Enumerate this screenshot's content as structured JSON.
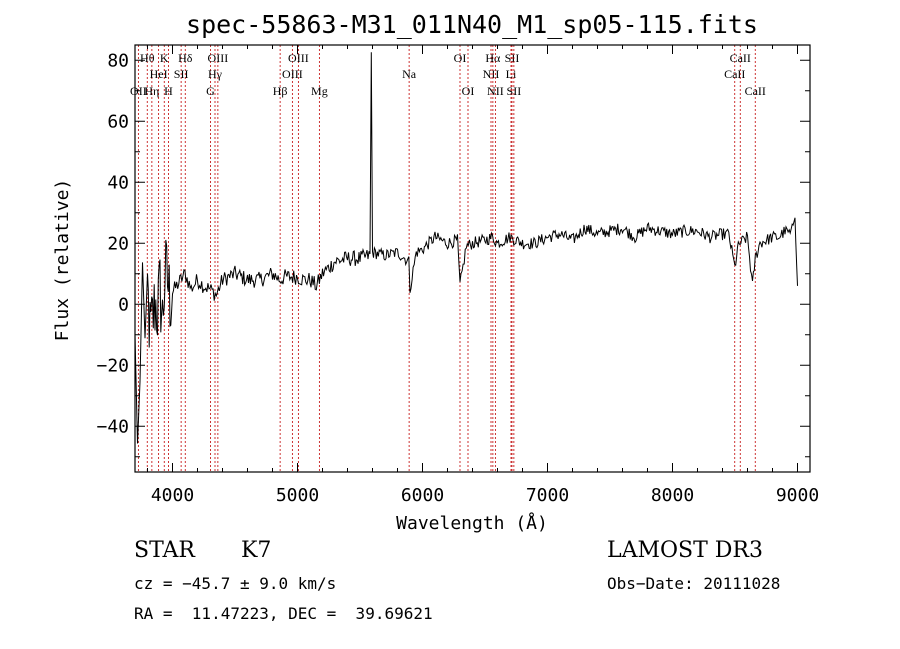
{
  "chart_data": {
    "type": "line",
    "title": "spec-55863-M31_011N40_M1_sp05-115.fits",
    "xlabel": "Wavelength (Å)",
    "ylabel": "Flux (relative)",
    "xlim": [
      3700,
      9100
    ],
    "ylim": [
      -55,
      85
    ],
    "x_ticks": [
      4000,
      5000,
      6000,
      7000,
      8000,
      9000
    ],
    "y_ticks": [
      -40,
      -20,
      0,
      20,
      40,
      60,
      80
    ],
    "series": [
      {
        "name": "spectrum",
        "x": [
          3700,
          3720,
          3740,
          3760,
          3780,
          3800,
          3820,
          3840,
          3860,
          3880,
          3900,
          3920,
          3940,
          3960,
          3980,
          4000,
          4050,
          4100,
          4150,
          4200,
          4250,
          4300,
          4350,
          4400,
          4450,
          4500,
          4600,
          4700,
          4800,
          4860,
          4900,
          5000,
          5050,
          5100,
          5150,
          5200,
          5300,
          5400,
          5500,
          5580,
          5590,
          5600,
          5700,
          5800,
          5890,
          5900,
          5950,
          6000,
          6100,
          6200,
          6280,
          6300,
          6350,
          6400,
          6500,
          6560,
          6600,
          6700,
          6800,
          6900,
          7000,
          7100,
          7200,
          7300,
          7400,
          7500,
          7600,
          7700,
          7800,
          7900,
          8000,
          8100,
          8200,
          8300,
          8400,
          8450,
          8498,
          8520,
          8540,
          8600,
          8640,
          8662,
          8700,
          8800,
          8850,
          8900,
          8950,
          8980,
          9000
        ],
        "y": [
          -10,
          -50,
          -20,
          10,
          -25,
          5,
          -10,
          -5,
          0,
          -2,
          5,
          -5,
          10,
          8,
          2,
          4,
          7,
          10,
          5,
          8,
          6,
          5,
          3,
          8,
          9,
          10,
          8,
          8,
          10,
          8,
          9,
          9,
          8,
          8,
          6,
          10,
          14,
          15,
          15,
          16,
          82,
          17,
          16,
          17,
          14,
          5,
          17,
          18,
          22,
          20,
          21,
          6,
          19,
          20,
          21,
          22,
          20,
          22,
          20,
          20,
          22,
          23,
          21,
          25,
          23,
          24,
          25,
          22,
          25,
          24,
          23,
          24,
          24,
          22,
          23,
          23,
          12,
          18,
          20,
          22,
          6,
          15,
          20,
          22,
          22,
          24,
          23,
          30,
          6
        ]
      }
    ],
    "spectral_lines": [
      {
        "label": "OII",
        "wavelength": 3727,
        "row": 3
      },
      {
        "label": "Hθ",
        "wavelength": 3798,
        "row": 1
      },
      {
        "label": "Hη",
        "wavelength": 3835,
        "row": 3
      },
      {
        "label": "HeI",
        "wavelength": 3889,
        "row": 2
      },
      {
        "label": "K",
        "wavelength": 3934,
        "row": 1
      },
      {
        "label": "H",
        "wavelength": 3968,
        "row": 3
      },
      {
        "label": "SII",
        "wavelength": 4069,
        "row": 2
      },
      {
        "label": "Hδ",
        "wavelength": 4102,
        "row": 1
      },
      {
        "label": "G",
        "wavelength": 4304,
        "row": 3
      },
      {
        "label": "Hγ",
        "wavelength": 4340,
        "row": 2
      },
      {
        "label": "OIII",
        "wavelength": 4363,
        "row": 1
      },
      {
        "label": "Hβ",
        "wavelength": 4861,
        "row": 3
      },
      {
        "label": "OIII",
        "wavelength": 4959,
        "row": 2
      },
      {
        "label": "OIII",
        "wavelength": 5007,
        "row": 1
      },
      {
        "label": "Mg",
        "wavelength": 5175,
        "row": 3
      },
      {
        "label": "Na",
        "wavelength": 5893,
        "row": 2
      },
      {
        "label": "OI",
        "wavelength": 6300,
        "row": 1
      },
      {
        "label": "OI",
        "wavelength": 6364,
        "row": 3
      },
      {
        "label": "NII",
        "wavelength": 6548,
        "row": 2
      },
      {
        "label": "Hα",
        "wavelength": 6563,
        "row": 1
      },
      {
        "label": "NII",
        "wavelength": 6583,
        "row": 3
      },
      {
        "label": "SII",
        "wavelength": 6716,
        "row": 1
      },
      {
        "label": "Li",
        "wavelength": 6708,
        "row": 2
      },
      {
        "label": "SII",
        "wavelength": 6731,
        "row": 3
      },
      {
        "label": "CaII",
        "wavelength": 8498,
        "row": 2
      },
      {
        "label": "CaII",
        "wavelength": 8542,
        "row": 1
      },
      {
        "label": "CaII",
        "wavelength": 8662,
        "row": 3
      }
    ]
  },
  "info": {
    "object_class": "STAR",
    "subclass": "K7",
    "survey": "LAMOST DR3",
    "cz": "cz = −45.7 ± 9.0 km/s",
    "obs_date": "Obs−Date: 20111028",
    "coords": "RA =  11.47223, DEC =  39.69621"
  },
  "colors": {
    "line_marker": "#c00000",
    "spectrum": "#000000",
    "axes": "#000000"
  }
}
